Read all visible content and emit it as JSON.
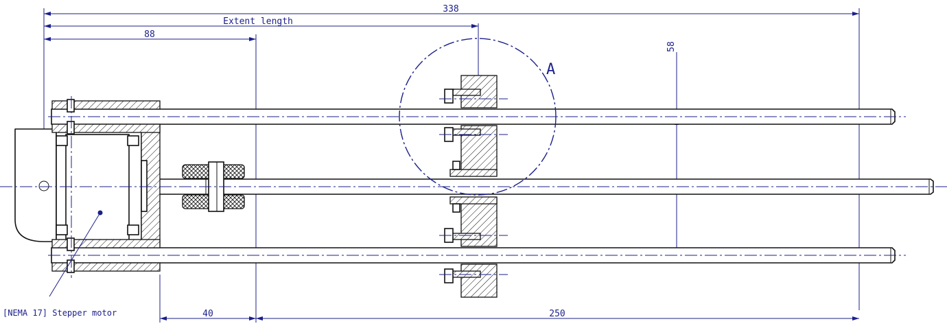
{
  "drawing": {
    "dimensions": {
      "overall": "338",
      "extent_length": "Extent length",
      "motor_section": "88",
      "rod_spacing": "58",
      "gap": "40",
      "travel": "250"
    },
    "detail_label": "A",
    "callout": "[NEMA 17] Stepper motor",
    "colors": {
      "dimension": "#1b1f8a",
      "geometry": "#111111"
    }
  }
}
